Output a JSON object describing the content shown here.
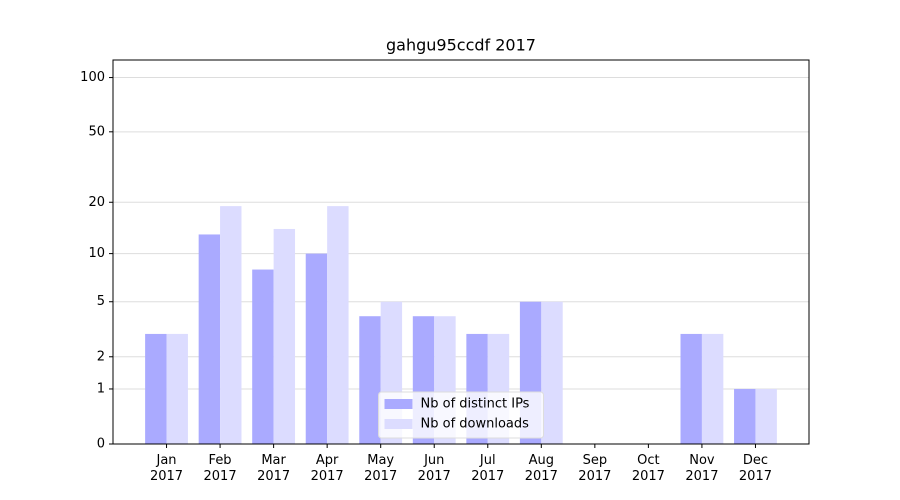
{
  "chart_data": {
    "type": "bar",
    "title": "gahgu95ccdf 2017",
    "categories": [
      "Jan 2017",
      "Feb 2017",
      "Mar 2017",
      "Apr 2017",
      "May 2017",
      "Jun 2017",
      "Jul 2017",
      "Aug 2017",
      "Sep 2017",
      "Oct 2017",
      "Nov 2017",
      "Dec 2017"
    ],
    "series": [
      {
        "name": "Nb of distinct IPs",
        "color": "#aaaaff",
        "values": [
          3,
          13,
          8,
          10,
          4,
          4,
          3,
          5,
          0,
          0,
          3,
          1
        ]
      },
      {
        "name": "Nb of downloads",
        "color": "#dcdcff",
        "values": [
          3,
          19,
          14,
          19,
          5,
          4,
          3,
          5,
          0,
          0,
          3,
          1
        ]
      }
    ],
    "yscale": "log1p",
    "ylim": [
      0,
      125
    ],
    "yticks": [
      0,
      1,
      2,
      5,
      10,
      20,
      50,
      100
    ],
    "grid": true,
    "legend": "lower center"
  }
}
